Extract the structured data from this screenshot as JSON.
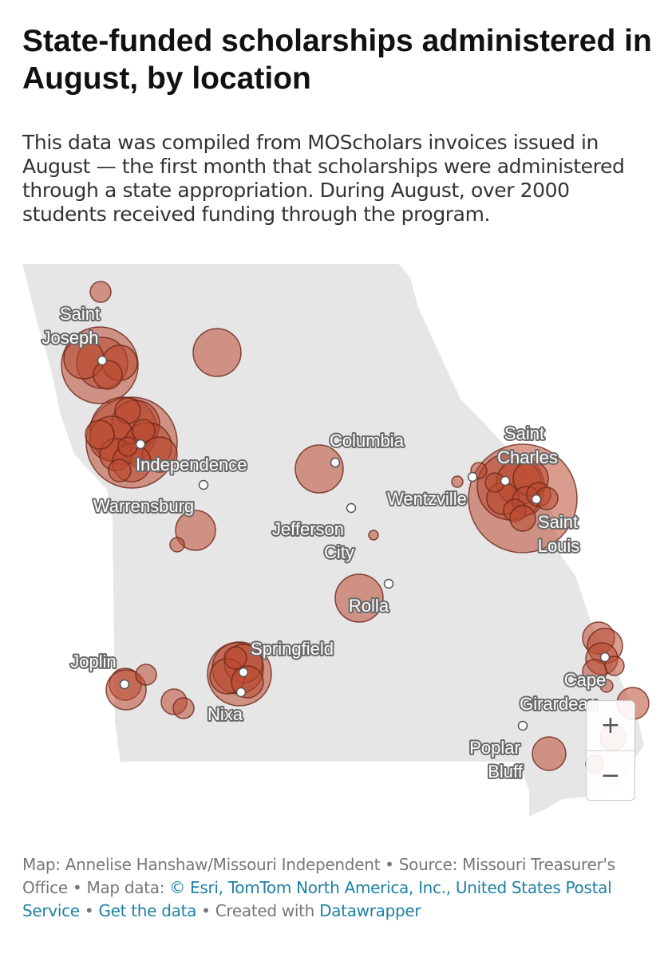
{
  "header": {
    "title": "State-funded scholarships administered in August, by location",
    "description": "This data was compiled from MOScholars invoices issued in August — the first month that scholarships were administered through a state appropriation. During August, over 2000 students received funding through the program."
  },
  "map": {
    "region": "Missouri",
    "colors": {
      "land": "#e6e6e6",
      "bubble_fill": "#b94a31",
      "bubble_stroke": "#6b2417",
      "city_dot": "#ffffff"
    },
    "city_labels": [
      {
        "id": "saint-joseph-1",
        "text": "Saint"
      },
      {
        "id": "saint-joseph-2",
        "text": "Joseph"
      },
      {
        "id": "independence",
        "text": "Independence"
      },
      {
        "id": "warrensburg",
        "text": "Warrensburg"
      },
      {
        "id": "columbia",
        "text": "Columbia"
      },
      {
        "id": "jefferson-1",
        "text": "Jefferson"
      },
      {
        "id": "jefferson-2",
        "text": "City"
      },
      {
        "id": "wentzville",
        "text": "Wentzville"
      },
      {
        "id": "saint-charles-1",
        "text": "Saint"
      },
      {
        "id": "saint-charles-2",
        "text": "Charles"
      },
      {
        "id": "saint-louis-1",
        "text": "Saint"
      },
      {
        "id": "saint-louis-2",
        "text": "Louis"
      },
      {
        "id": "rolla",
        "text": "Rolla"
      },
      {
        "id": "springfield",
        "text": "Springfield"
      },
      {
        "id": "joplin",
        "text": "Joplin"
      },
      {
        "id": "nixa",
        "text": "Nixa"
      },
      {
        "id": "cape-1",
        "text": "Cape"
      },
      {
        "id": "cape-2",
        "text": "Girardeau"
      },
      {
        "id": "poplar-1",
        "text": "Poplar"
      },
      {
        "id": "poplar-2",
        "text": "Bluff"
      }
    ],
    "zoom": {
      "in_label": "+",
      "out_label": "−"
    }
  },
  "credits": {
    "map_by": "Map: Annelise Hanshaw/Missouri Independent",
    "sep1": " • ",
    "source": "Source: Missouri Treasurer's Office",
    "sep2": " • ",
    "map_data_prefix": "Map data: ",
    "map_data_link": "© Esri, TomTom North America, Inc., United States Postal Service",
    "sep3": "  • ",
    "get_data": "Get the data",
    "sep4": " • ",
    "created_with": "Created with ",
    "datawrapper": "Datawrapper"
  }
}
